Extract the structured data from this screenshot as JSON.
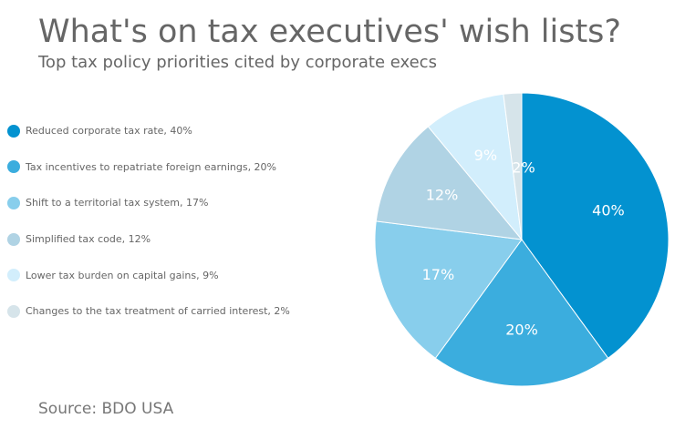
{
  "chart_data": {
    "type": "pie",
    "title": "What's on tax executives' wish lists?",
    "subtitle": "Top tax policy priorities cited by corporate execs",
    "source": "Source: BDO USA",
    "legend_position": "left",
    "slices": [
      {
        "label": "Reduced corporate tax rate, 40%",
        "value": 40,
        "data_label": "40%",
        "color": "#0392d0"
      },
      {
        "label": "Tax incentives to repatriate foreign earnings, 20%",
        "value": 20,
        "data_label": "20%",
        "color": "#3badde"
      },
      {
        "label": "Shift to a territorial tax system, 17%",
        "value": 17,
        "data_label": "17%",
        "color": "#88ceec"
      },
      {
        "label": "Simplified tax code, 12%",
        "value": 12,
        "data_label": "12%",
        "color": "#b0d3e4"
      },
      {
        "label": "Lower tax burden on capital gains, 9%",
        "value": 9,
        "data_label": "9%",
        "color": "#d2eefc"
      },
      {
        "label": "Changes to the tax treatment of carried interest, 2%",
        "value": 2,
        "data_label": "2%",
        "color": "#d6e4ea"
      }
    ]
  }
}
